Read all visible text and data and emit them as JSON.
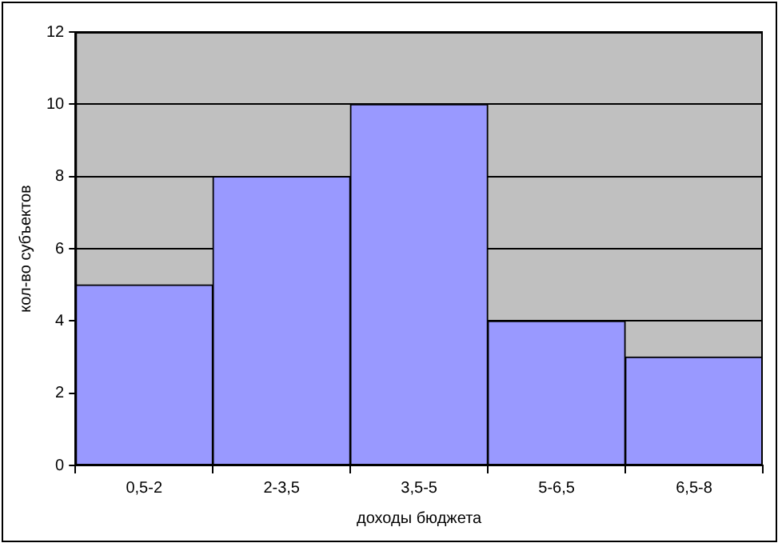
{
  "chart_data": {
    "type": "bar",
    "xlabel": "доходы бюджета",
    "ylabel": "кол-во субъектов",
    "categories": [
      "0,5-2",
      "2-3,5",
      "3,5-5",
      "5-6,5",
      "6,5-8"
    ],
    "values": [
      5,
      8,
      10,
      4,
      3
    ],
    "color": "#9999ff",
    "ylim": [
      0,
      12
    ],
    "yticks": [
      0,
      2,
      4,
      6,
      8,
      10,
      12
    ],
    "grid": "y"
  }
}
